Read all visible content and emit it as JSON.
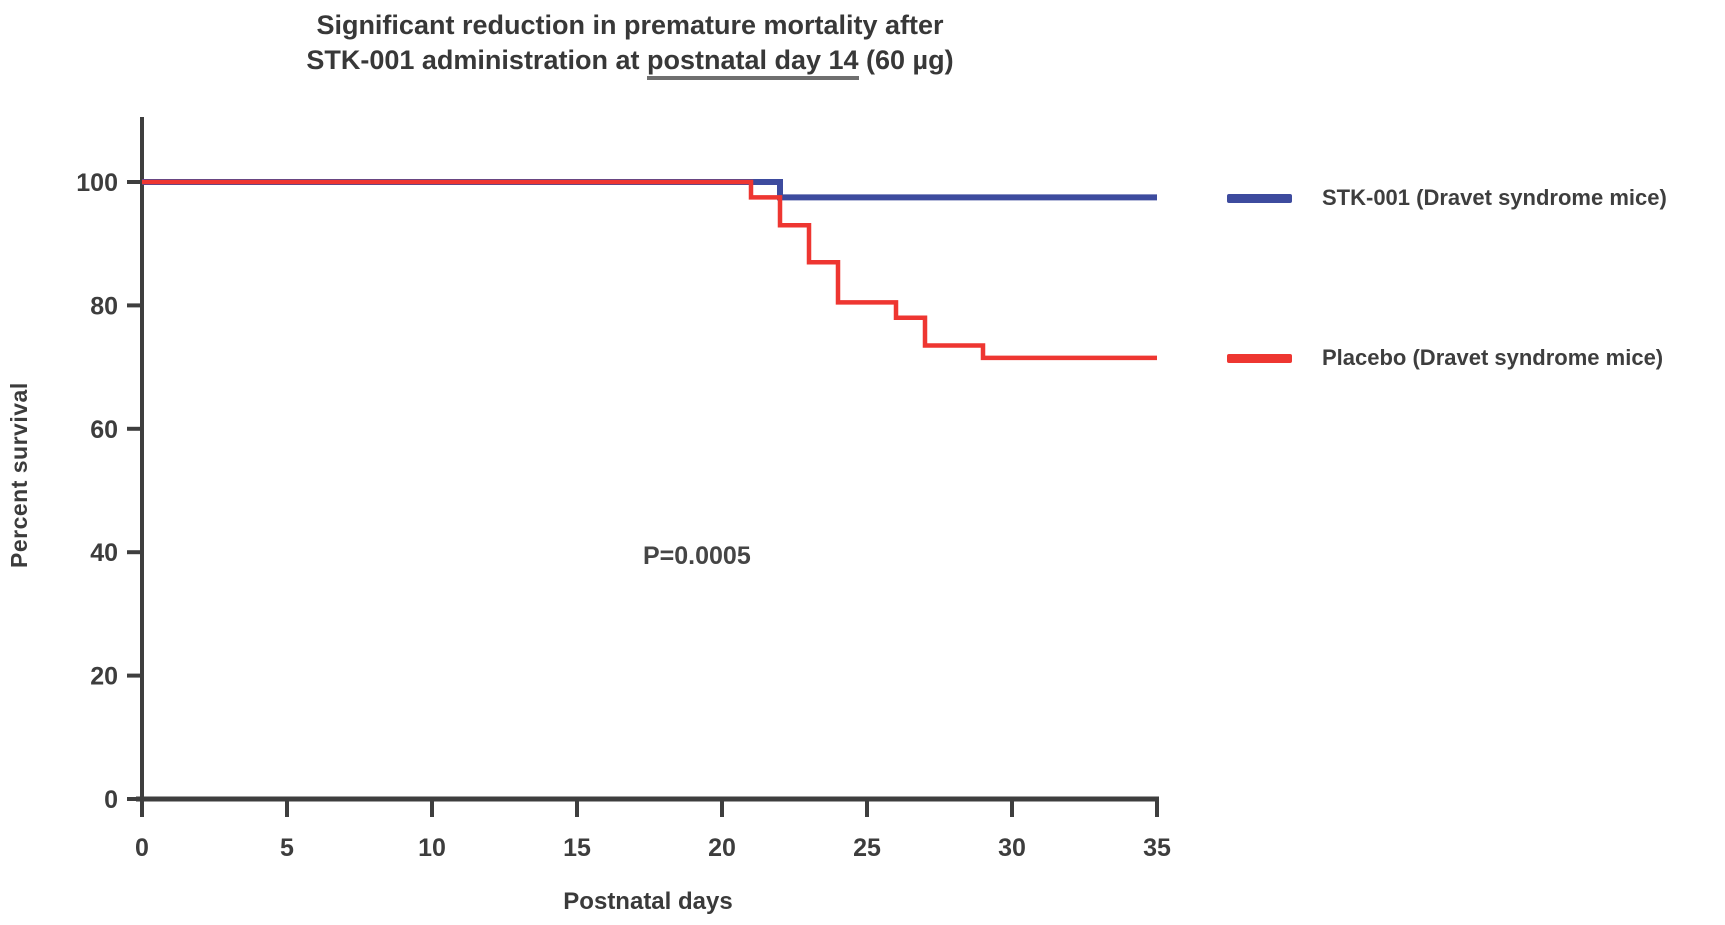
{
  "title": {
    "line1": "Significant reduction in premature mortality after",
    "line2_prefix": "STK-001 administration at ",
    "line2_underlined": "postnatal day 14",
    "line2_suffix": " (60 µg)"
  },
  "axes": {
    "y_label": "Percent survival",
    "x_label": "Postnatal days"
  },
  "annotation": {
    "p_value": "P=0.0005"
  },
  "legend": {
    "items": [
      {
        "label": "STK-001 (Dravet syndrome mice)",
        "color": "#3d4b9e"
      },
      {
        "label": "Placebo (Dravet syndrome mice)",
        "color": "#ee3631"
      }
    ]
  },
  "colors": {
    "stk001_line": "#3d4b9e",
    "placebo_line": "#ee3631",
    "axis": "#3e3e3e",
    "text": "#3a3a3a"
  },
  "chart_data": {
    "type": "line",
    "subtype": "kaplan-meier-step-survival",
    "title": "Significant reduction in premature mortality after STK-001 administration at postnatal day 14 (60 µg)",
    "xlabel": "Postnatal days",
    "ylabel": "Percent survival",
    "xlim": [
      0,
      35
    ],
    "ylim": [
      0,
      110
    ],
    "x_ticks": [
      0,
      5,
      10,
      15,
      20,
      25,
      30,
      35
    ],
    "y_ticks": [
      0,
      20,
      40,
      60,
      80,
      100
    ],
    "grid": false,
    "legend_position": "right",
    "annotation": {
      "text": "P=0.0005",
      "x": 17,
      "y": 40
    },
    "series": [
      {
        "name": "STK-001 (Dravet syndrome mice)",
        "color": "#3d4b9e",
        "points": [
          [
            0,
            100
          ],
          [
            22,
            100
          ],
          [
            22,
            97.5
          ],
          [
            35,
            97.5
          ]
        ]
      },
      {
        "name": "Placebo (Dravet syndrome mice)",
        "color": "#ee3631",
        "points": [
          [
            0,
            100
          ],
          [
            21,
            100
          ],
          [
            21,
            97.5
          ],
          [
            22,
            97.5
          ],
          [
            22,
            93
          ],
          [
            23,
            93
          ],
          [
            23,
            87
          ],
          [
            24,
            87
          ],
          [
            24,
            80.5
          ],
          [
            26,
            80.5
          ],
          [
            26,
            78
          ],
          [
            27,
            78
          ],
          [
            27,
            73.5
          ],
          [
            29,
            73.5
          ],
          [
            29,
            71.5
          ],
          [
            35,
            71.5
          ]
        ]
      }
    ]
  }
}
